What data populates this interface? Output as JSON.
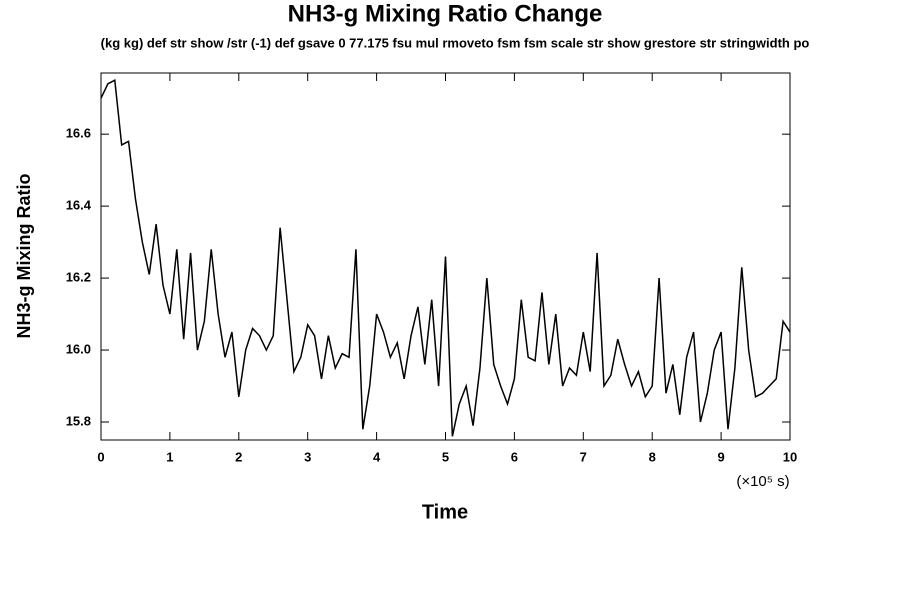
{
  "chart_data": {
    "type": "line",
    "title": "NH3-g Mixing Ratio Change",
    "subtitle": "(kg kg) def str show /str (-1) def gsave 0 77.175 fsu mul rmoveto fsm fsm scale str show grestore str stringwidth po",
    "x_label": "Time",
    "y_label": "NH3-g Mixing Ratio",
    "x_unit": "(×10⁵ s)",
    "x": [
      0,
      0.1,
      0.2,
      0.3,
      0.4,
      0.5,
      0.6,
      0.7,
      0.8,
      0.9,
      1,
      1.1,
      1.2,
      1.3,
      1.4,
      1.5,
      1.6,
      1.7,
      1.8,
      1.9,
      2,
      2.1,
      2.2,
      2.3,
      2.4,
      2.5,
      2.6,
      2.7,
      2.8,
      2.9,
      3,
      3.1,
      3.2,
      3.3,
      3.4,
      3.5,
      3.6,
      3.7,
      3.8,
      3.9,
      4,
      4.1,
      4.2,
      4.3,
      4.4,
      4.5,
      4.6,
      4.7,
      4.8,
      4.9,
      5,
      5.1,
      5.2,
      5.3,
      5.4,
      5.5,
      5.6,
      5.7,
      5.8,
      5.9,
      6,
      6.1,
      6.2,
      6.3,
      6.4,
      6.5,
      6.6,
      6.7,
      6.8,
      6.9,
      7,
      7.1,
      7.2,
      7.3,
      7.4,
      7.5,
      7.6,
      7.7,
      7.8,
      7.9,
      8,
      8.1,
      8.2,
      8.3,
      8.4,
      8.5,
      8.6,
      8.7,
      8.8,
      8.9,
      9,
      9.1,
      9.2,
      9.3,
      9.4,
      9.5,
      9.6,
      9.7,
      9.8,
      9.9,
      10
    ],
    "series": [
      {
        "name": "NH3-g",
        "color": "#000000",
        "values": [
          16.7,
          16.74,
          16.75,
          16.57,
          16.58,
          16.42,
          16.3,
          16.21,
          16.35,
          16.18,
          16.1,
          16.28,
          16.03,
          16.27,
          16.0,
          16.08,
          16.28,
          16.1,
          15.98,
          16.05,
          15.87,
          16.0,
          16.06,
          16.04,
          16.0,
          16.04,
          16.34,
          16.14,
          15.94,
          15.98,
          16.07,
          16.04,
          15.92,
          16.04,
          15.95,
          15.99,
          15.98,
          16.28,
          15.78,
          15.9,
          16.1,
          16.05,
          15.98,
          16.02,
          15.92,
          16.04,
          16.12,
          15.96,
          16.14,
          15.9,
          16.26,
          15.76,
          15.85,
          15.9,
          15.79,
          15.95,
          16.2,
          15.96,
          15.9,
          15.85,
          15.92,
          16.14,
          15.98,
          15.97,
          16.16,
          15.96,
          16.1,
          15.9,
          15.95,
          15.93,
          16.05,
          15.94,
          16.27,
          15.9,
          15.93,
          16.03,
          15.96,
          15.9,
          15.94,
          15.87,
          15.9,
          16.2,
          15.88,
          15.96,
          15.82,
          15.98,
          16.05,
          15.8,
          15.88,
          16.0,
          16.05,
          15.78,
          15.95,
          16.23,
          16.0,
          15.87,
          15.88,
          15.9,
          15.92,
          16.08,
          16.05
        ]
      }
    ],
    "xlim": [
      0,
      10
    ],
    "xticks": [
      0,
      1,
      2,
      3,
      4,
      5,
      6,
      7,
      8,
      9,
      10
    ],
    "ylim": [
      15.75,
      16.77
    ],
    "yticks": [
      15.8,
      {
        "value": 16,
        "label": "16.0"
      },
      16.2,
      16.4,
      16.6
    ],
    "grid": false
  }
}
